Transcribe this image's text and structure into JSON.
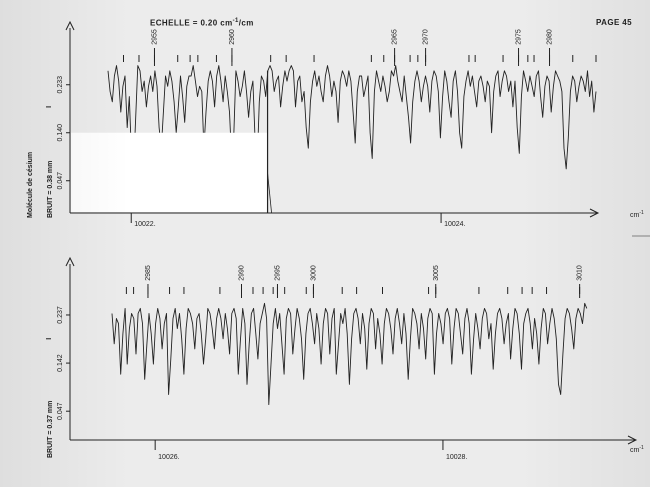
{
  "header": {
    "scale_label": "ECHELLE = 0.20 cm",
    "scale_sup": "-1",
    "scale_tail": "/cm",
    "page_label": "PAGE 45"
  },
  "colors": {
    "ink": "#222222",
    "paper": "#ececec",
    "blank": "#ffffff"
  },
  "chart_data": [
    {
      "type": "line",
      "panel": "top",
      "molecule_label": "Molécule de césium",
      "noise_label": "BRUIT = 0.38 mm",
      "x_unit": "cm",
      "x_unit_sup": "-1",
      "x_ticks": [
        {
          "value": 10022,
          "label": "10022."
        },
        {
          "value": 10024,
          "label": "10024."
        }
      ],
      "xlim": [
        10021.85,
        10025.0
      ],
      "y_ticks": [
        {
          "value": 0.047,
          "label": "0.047"
        },
        {
          "value": 0.14,
          "label": "0.140"
        },
        {
          "value": 0.233,
          "label": "0.233"
        }
      ],
      "y_label": "I",
      "ylim": [
        0.0,
        0.31
      ],
      "line_numbers": [
        {
          "label": "2955",
          "x": 10022.15
        },
        {
          "label": "2960",
          "x": 10022.65
        },
        {
          "label": "2965",
          "x": 10023.7
        },
        {
          "label": "2970",
          "x": 10023.9
        },
        {
          "label": "2975",
          "x": 10024.5
        },
        {
          "label": "2980",
          "x": 10024.7
        }
      ],
      "line_marks": [
        10021.95,
        10022.05,
        10022.15,
        10022.3,
        10022.38,
        10022.43,
        10022.55,
        10022.65,
        10022.9,
        10023.0,
        10023.18,
        10023.55,
        10023.63,
        10023.7,
        10023.8,
        10023.85,
        10023.9,
        10024.18,
        10024.22,
        10024.4,
        10024.5,
        10024.56,
        10024.6,
        10024.7,
        10024.85,
        10025.0
      ],
      "missing_segment": [
        10021.85,
        10022.88
      ],
      "samples_x": [
        10021.85,
        10025.0
      ],
      "values": [
        0.26,
        0.22,
        0.2,
        0.25,
        0.27,
        0.24,
        0.18,
        0.23,
        0.25,
        0.15,
        0.21,
        0.1,
        0.07,
        0.17,
        0.27,
        0.26,
        0.22,
        0.24,
        0.19,
        0.23,
        0.25,
        0.22,
        0.26,
        0.23,
        0.15,
        0.11,
        0.18,
        0.25,
        0.23,
        0.26,
        0.24,
        0.2,
        0.14,
        0.19,
        0.25,
        0.21,
        0.16,
        0.23,
        0.25,
        0.25,
        0.27,
        0.24,
        0.21,
        0.23,
        0.22,
        0.11,
        0.18,
        0.24,
        0.26,
        0.24,
        0.19,
        0.25,
        0.27,
        0.24,
        0.2,
        0.25,
        0.22,
        0.18,
        0.09,
        0.13,
        0.26,
        0.24,
        0.21,
        0.23,
        0.26,
        0.22,
        0.17,
        0.22,
        0.24,
        0.13,
        0.08,
        0.2,
        0.25,
        0.24,
        0.21,
        0.26,
        0.27,
        0.26,
        0.22,
        0.24,
        0.25,
        0.19,
        0.23,
        0.26,
        0.24,
        0.26,
        0.27,
        0.26,
        0.19,
        0.24,
        0.25,
        0.2,
        0.22,
        0.15,
        0.11,
        0.2,
        0.24,
        0.26,
        0.23,
        0.25,
        0.22,
        0.2,
        0.25,
        0.27,
        0.25,
        0.21,
        0.24,
        0.22,
        0.16,
        0.24,
        0.26,
        0.25,
        0.23,
        0.26,
        0.24,
        0.18,
        0.12,
        0.22,
        0.25,
        0.25,
        0.21,
        0.23,
        0.25,
        0.14,
        0.09,
        0.22,
        0.26,
        0.24,
        0.22,
        0.25,
        0.23,
        0.2,
        0.22,
        0.26,
        0.25,
        0.27,
        0.24,
        0.22,
        0.2,
        0.25,
        0.21,
        0.17,
        0.12,
        0.2,
        0.24,
        0.26,
        0.24,
        0.2,
        0.23,
        0.25,
        0.23,
        0.18,
        0.24,
        0.26,
        0.25,
        0.22,
        0.13,
        0.21,
        0.26,
        0.24,
        0.2,
        0.17,
        0.24,
        0.26,
        0.22,
        0.14,
        0.11,
        0.21,
        0.24,
        0.26,
        0.23,
        0.25,
        0.22,
        0.19,
        0.24,
        0.25,
        0.23,
        0.2,
        0.24,
        0.23,
        0.14,
        0.22,
        0.25,
        0.26,
        0.21,
        0.24,
        0.26,
        0.25,
        0.22,
        0.24,
        0.19,
        0.24,
        0.15,
        0.1,
        0.21,
        0.26,
        0.24,
        0.22,
        0.25,
        0.23,
        0.21,
        0.25,
        0.26,
        0.21,
        0.17,
        0.23,
        0.25,
        0.24,
        0.18,
        0.23,
        0.26,
        0.25,
        0.24,
        0.22,
        0.11,
        0.07,
        0.13,
        0.22,
        0.25,
        0.24,
        0.2,
        0.23,
        0.25,
        0.24,
        0.22,
        0.26,
        0.21,
        0.24,
        0.18,
        0.22
      ]
    },
    {
      "type": "line",
      "panel": "bottom",
      "noise_label": "BRUIT = 0.37 mm",
      "x_unit": "cm",
      "x_unit_sup": "-1",
      "x_ticks": [
        {
          "value": 10026,
          "label": "10026."
        },
        {
          "value": 10028,
          "label": "10028."
        }
      ],
      "xlim": [
        10025.7,
        10029.3
      ],
      "y_ticks": [
        {
          "value": 0.047,
          "label": "0.047"
        },
        {
          "value": 0.142,
          "label": "0.142"
        },
        {
          "value": 0.237,
          "label": "0.237"
        }
      ],
      "y_label": "I",
      "ylim": [
        0.0,
        0.31
      ],
      "line_numbers": [
        {
          "label": "2985",
          "x": 10025.95
        },
        {
          "label": "2990",
          "x": 10026.6
        },
        {
          "label": "2995",
          "x": 10026.85
        },
        {
          "label": "3000",
          "x": 10027.1
        },
        {
          "label": "3005",
          "x": 10027.95
        },
        {
          "label": "3010",
          "x": 10028.95
        }
      ],
      "line_marks": [
        10025.8,
        10025.85,
        10025.95,
        10026.1,
        10026.2,
        10026.45,
        10026.6,
        10026.68,
        10026.75,
        10026.82,
        10026.85,
        10026.9,
        10027.05,
        10027.1,
        10027.3,
        10027.4,
        10027.58,
        10027.9,
        10027.95,
        10028.25,
        10028.45,
        10028.55,
        10028.62,
        10028.72,
        10028.95
      ],
      "missing_segment": null,
      "samples_x": [
        10025.7,
        10029.0
      ],
      "values": [
        0.24,
        0.18,
        0.23,
        0.22,
        0.12,
        0.2,
        0.25,
        0.14,
        0.21,
        0.24,
        0.23,
        0.16,
        0.24,
        0.25,
        0.22,
        0.11,
        0.18,
        0.24,
        0.2,
        0.14,
        0.22,
        0.25,
        0.23,
        0.17,
        0.22,
        0.24,
        0.08,
        0.15,
        0.23,
        0.25,
        0.21,
        0.24,
        0.19,
        0.12,
        0.21,
        0.25,
        0.24,
        0.22,
        0.17,
        0.23,
        0.24,
        0.2,
        0.14,
        0.19,
        0.25,
        0.24,
        0.21,
        0.17,
        0.23,
        0.25,
        0.23,
        0.19,
        0.24,
        0.21,
        0.16,
        0.24,
        0.25,
        0.23,
        0.12,
        0.19,
        0.25,
        0.22,
        0.1,
        0.18,
        0.24,
        0.25,
        0.2,
        0.15,
        0.22,
        0.24,
        0.26,
        0.23,
        0.06,
        0.14,
        0.22,
        0.25,
        0.21,
        0.24,
        0.18,
        0.12,
        0.23,
        0.25,
        0.24,
        0.16,
        0.21,
        0.25,
        0.23,
        0.19,
        0.11,
        0.2,
        0.24,
        0.25,
        0.22,
        0.18,
        0.24,
        0.21,
        0.14,
        0.22,
        0.25,
        0.24,
        0.16,
        0.23,
        0.25,
        0.12,
        0.18,
        0.24,
        0.22,
        0.25,
        0.2,
        0.1,
        0.19,
        0.24,
        0.25,
        0.23,
        0.18,
        0.24,
        0.21,
        0.13,
        0.22,
        0.25,
        0.24,
        0.17,
        0.23,
        0.2,
        0.14,
        0.22,
        0.25,
        0.24,
        0.21,
        0.16,
        0.23,
        0.25,
        0.22,
        0.18,
        0.24,
        0.2,
        0.11,
        0.19,
        0.25,
        0.24,
        0.22,
        0.17,
        0.24,
        0.21,
        0.15,
        0.23,
        0.25,
        0.24,
        0.12,
        0.2,
        0.24,
        0.22,
        0.18,
        0.24,
        0.25,
        0.23,
        0.14,
        0.21,
        0.25,
        0.24,
        0.2,
        0.16,
        0.23,
        0.25,
        0.22,
        0.12,
        0.19,
        0.24,
        0.21,
        0.17,
        0.23,
        0.25,
        0.24,
        0.19,
        0.22,
        0.13,
        0.2,
        0.24,
        0.25,
        0.23,
        0.18,
        0.22,
        0.24,
        0.15,
        0.21,
        0.25,
        0.24,
        0.2,
        0.13,
        0.22,
        0.24,
        0.25,
        0.22,
        0.17,
        0.23,
        0.2,
        0.14,
        0.21,
        0.25,
        0.24,
        0.18,
        0.22,
        0.25,
        0.23,
        0.19,
        0.1,
        0.08,
        0.16,
        0.23,
        0.25,
        0.24,
        0.21,
        0.17,
        0.23,
        0.25,
        0.24,
        0.22,
        0.26,
        0.25
      ]
    }
  ]
}
